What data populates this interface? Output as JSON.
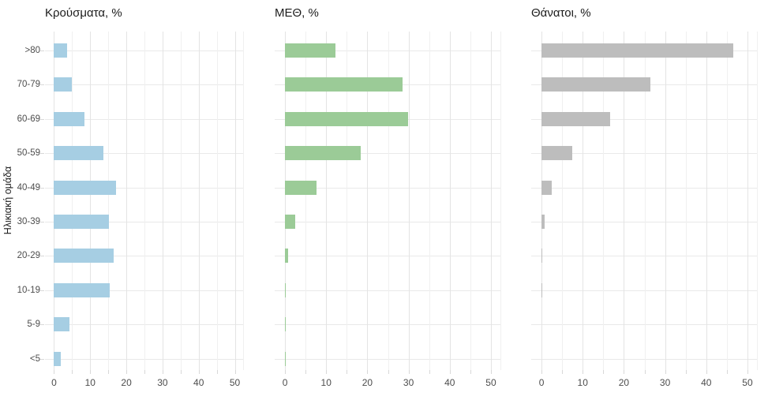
{
  "chart_data": {
    "type": "bar",
    "orientation": "horizontal",
    "ylabel": "Ηλικιακή ομάδα",
    "categories": [
      ">80",
      "70-79",
      "60-69",
      "50-59",
      "40-49",
      "30-39",
      "20-29",
      "10-19",
      "5-9",
      "<5"
    ],
    "xlim": [
      0,
      50
    ],
    "xticks": [
      0,
      10,
      20,
      30,
      40,
      50
    ],
    "minor_grid_step": 5,
    "grid": "on",
    "legend_position": "none",
    "panels": [
      {
        "title": "Κρούσματα, %",
        "color": "#a6cee3",
        "values": [
          3.6,
          4.9,
          8.4,
          13.7,
          17.2,
          15.2,
          16.5,
          15.5,
          4.2,
          1.9
        ]
      },
      {
        "title": "ΜΕΘ, %",
        "color": "#9bcb97",
        "values": [
          12.3,
          28.5,
          29.9,
          18.3,
          7.7,
          2.5,
          0.8,
          0.25,
          0.15,
          0.2
        ]
      },
      {
        "title": "Θάνατοι, %",
        "color": "#bdbdbd",
        "values": [
          46.6,
          26.4,
          16.6,
          7.5,
          2.5,
          0.8,
          0.15,
          0.15,
          0,
          0
        ]
      }
    ]
  }
}
